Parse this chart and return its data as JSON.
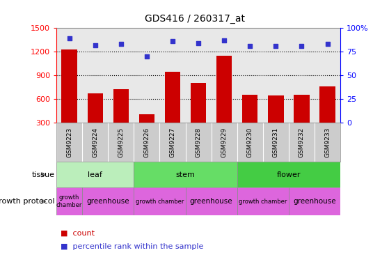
{
  "title": "GDS416 / 260317_at",
  "samples": [
    "GSM9223",
    "GSM9224",
    "GSM9225",
    "GSM9226",
    "GSM9227",
    "GSM9228",
    "GSM9229",
    "GSM9230",
    "GSM9231",
    "GSM9232",
    "GSM9233"
  ],
  "counts": [
    1230,
    670,
    720,
    400,
    940,
    800,
    1150,
    650,
    640,
    650,
    760
  ],
  "percentiles": [
    89,
    82,
    83,
    70,
    86,
    84,
    87,
    81,
    81,
    81,
    83
  ],
  "ylim_left": [
    300,
    1500
  ],
  "ylim_right": [
    0,
    100
  ],
  "yticks_left": [
    300,
    600,
    900,
    1200,
    1500
  ],
  "yticks_right": [
    0,
    25,
    50,
    75,
    100
  ],
  "bar_color": "#cc0000",
  "dot_color": "#3333cc",
  "tissue_groups": [
    {
      "label": "leaf",
      "start": 0,
      "end": 3
    },
    {
      "label": "stem",
      "start": 3,
      "end": 7
    },
    {
      "label": "flower",
      "start": 7,
      "end": 11
    }
  ],
  "tissue_colors": {
    "leaf": "#bbeebb",
    "stem": "#66dd66",
    "flower": "#44cc44"
  },
  "growth_groups": [
    {
      "label": "growth\nchamber",
      "start": 0,
      "end": 1
    },
    {
      "label": "greenhouse",
      "start": 1,
      "end": 3
    },
    {
      "label": "growth chamber",
      "start": 3,
      "end": 5
    },
    {
      "label": "greenhouse",
      "start": 5,
      "end": 7
    },
    {
      "label": "growth chamber",
      "start": 7,
      "end": 9
    },
    {
      "label": "greenhouse",
      "start": 9,
      "end": 11
    }
  ],
  "growth_color": "#dd66dd",
  "sample_bg_color": "#cccccc",
  "tissue_label": "tissue",
  "growth_label": "growth protocol",
  "legend_count_label": "count",
  "legend_percentile_label": "percentile rank within the sample",
  "grid_dotted_values": [
    600,
    900,
    1200
  ],
  "background_color": "#ffffff",
  "plot_bg_color": "#e8e8e8"
}
